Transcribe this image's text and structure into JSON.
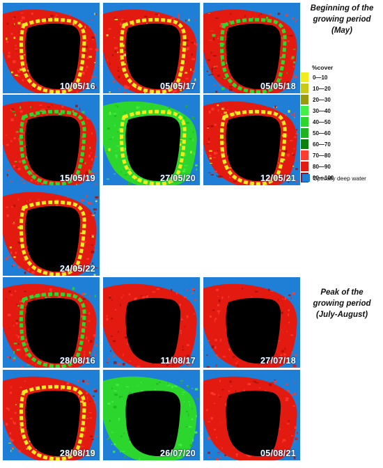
{
  "headings": {
    "beginning": [
      "Beginning of the",
      "growing period",
      "(May)"
    ],
    "peak": [
      "Peak of the",
      "growing period",
      "(July-August)"
    ]
  },
  "legend": {
    "title": "%cover",
    "classes": [
      {
        "label": "0—10",
        "color": "#f2ec1e"
      },
      {
        "label": "10—20",
        "color": "#c9c91a"
      },
      {
        "label": "20—30",
        "color": "#9a9a10"
      },
      {
        "label": "30—40",
        "color": "#44f046"
      },
      {
        "label": "40—50",
        "color": "#2cd62c"
      },
      {
        "label": "50—60",
        "color": "#1fb41f"
      },
      {
        "label": "60—70",
        "color": "#0e800e"
      },
      {
        "label": "70—80",
        "color": "#ff3b30"
      },
      {
        "label": "80—90",
        "color": "#e31a10"
      },
      {
        "label": "90—100",
        "color": "#a40f0a"
      }
    ],
    "water_label": "Optically deep water",
    "water_color": "#1f7fd6"
  },
  "maps": [
    {
      "date": "10/05/16",
      "period": "May",
      "dominant": "red",
      "rim": "yellow"
    },
    {
      "date": "05/05/17",
      "period": "May",
      "dominant": "red",
      "rim": "yellow"
    },
    {
      "date": "05/05/18",
      "period": "May",
      "dominant": "red",
      "rim": "green"
    },
    {
      "date": "15/05/19",
      "period": "May",
      "dominant": "red",
      "rim": "green"
    },
    {
      "date": "27/05/20",
      "period": "May",
      "dominant": "green",
      "rim": "yellow"
    },
    {
      "date": "12/05/21",
      "period": "May",
      "dominant": "red",
      "rim": "yellow"
    },
    {
      "date": "24/05/22",
      "period": "May",
      "dominant": "red",
      "rim": "yellow"
    },
    {
      "date": "28/08/16",
      "period": "July-August",
      "dominant": "red",
      "rim": "green"
    },
    {
      "date": "11/08/17",
      "period": "July-August",
      "dominant": "red",
      "rim": "red"
    },
    {
      "date": "27/07/18",
      "period": "July-August",
      "dominant": "red",
      "rim": "red"
    },
    {
      "date": "28/08/19",
      "period": "July-August",
      "dominant": "red",
      "rim": "yellow"
    },
    {
      "date": "26/07/20",
      "period": "July-August",
      "dominant": "green",
      "rim": "green"
    },
    {
      "date": "05/08/21",
      "period": "July-August",
      "dominant": "red",
      "rim": "red"
    }
  ]
}
